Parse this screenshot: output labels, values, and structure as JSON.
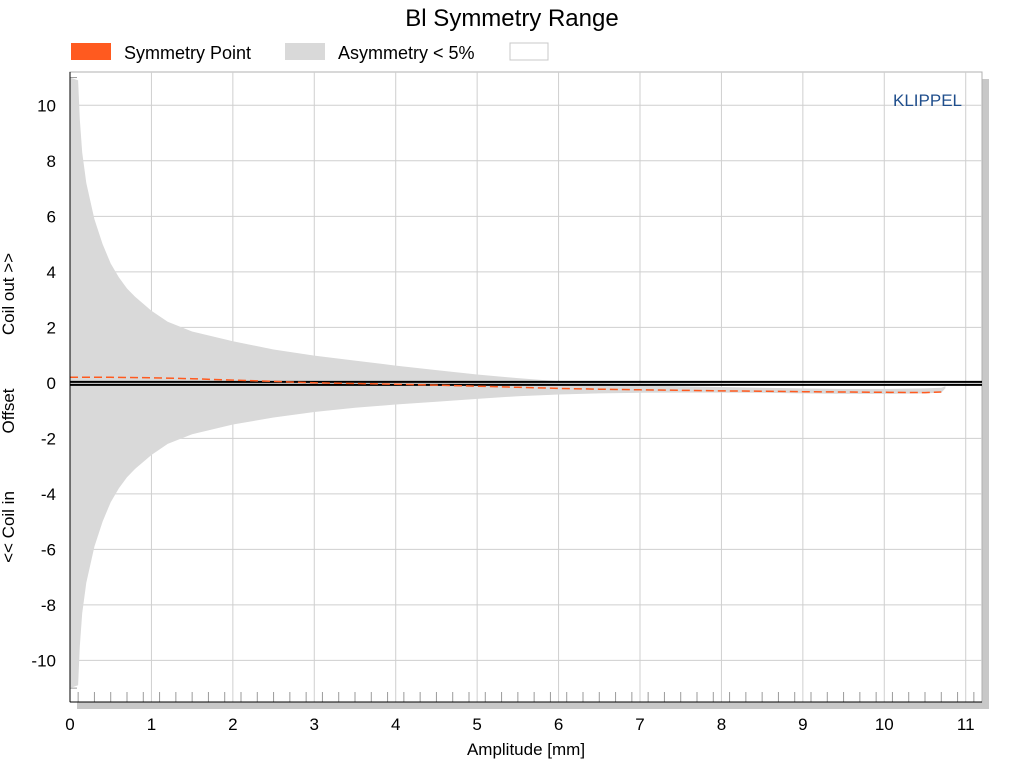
{
  "chart_data": {
    "type": "area",
    "title": "Bl Symmetry Range",
    "xlabel": "Amplitude [mm]",
    "ylabel_segments": [
      "<< Coil in",
      "Offset",
      "Coil out >>"
    ],
    "xlim": [
      0,
      11.2
    ],
    "ylim": [
      -11.5,
      11.2
    ],
    "xticks": [
      0,
      1,
      2,
      3,
      4,
      5,
      6,
      7,
      8,
      9,
      10,
      11
    ],
    "yticks": [
      -10,
      -8,
      -6,
      -4,
      -2,
      0,
      2,
      4,
      6,
      8,
      10
    ],
    "grid": true,
    "legend_position": "top",
    "watermark": "KLIPPEL",
    "legend": [
      {
        "label": "Symmetry Point",
        "color": "#ff5a1f"
      },
      {
        "label": "Asymmetry < 5%",
        "color": "#d9d9d9"
      },
      {
        "label": "",
        "color": "#ffffff"
      }
    ],
    "series": [
      {
        "name": "Asymmetry < 5%",
        "kind": "band",
        "x": [
          0.0,
          0.1,
          0.12,
          0.15,
          0.2,
          0.3,
          0.4,
          0.5,
          0.6,
          0.7,
          0.8,
          1.0,
          1.2,
          1.5,
          2.0,
          2.5,
          3.0,
          3.5,
          4.0,
          4.5,
          5.0,
          5.5,
          6.0,
          6.5,
          7.0,
          7.5,
          8.0,
          8.5,
          9.0,
          9.5,
          10.0,
          10.5,
          10.7,
          10.75
        ],
        "upper": [
          11.0,
          10.9,
          9.5,
          8.3,
          7.2,
          5.9,
          5.0,
          4.3,
          3.8,
          3.4,
          3.1,
          2.6,
          2.2,
          1.85,
          1.5,
          1.2,
          0.98,
          0.8,
          0.62,
          0.46,
          0.3,
          0.17,
          0.06,
          -0.02,
          -0.08,
          -0.12,
          -0.15,
          -0.18,
          -0.2,
          -0.22,
          -0.22,
          -0.2,
          -0.18,
          -0.12
        ],
        "lower": [
          -11.0,
          -10.9,
          -9.5,
          -8.3,
          -7.2,
          -5.9,
          -5.0,
          -4.3,
          -3.8,
          -3.4,
          -3.1,
          -2.6,
          -2.2,
          -1.85,
          -1.5,
          -1.25,
          -1.05,
          -0.9,
          -0.78,
          -0.68,
          -0.58,
          -0.48,
          -0.42,
          -0.38,
          -0.36,
          -0.35,
          -0.35,
          -0.36,
          -0.38,
          -0.4,
          -0.4,
          -0.38,
          -0.35,
          -0.2
        ],
        "color": "#d9d9d9"
      },
      {
        "name": "Symmetry Point",
        "kind": "line",
        "x": [
          0.0,
          0.5,
          1.0,
          1.5,
          2.0,
          2.5,
          3.0,
          4.0,
          4.5,
          5.0,
          5.5,
          6.0,
          6.5,
          7.0,
          7.5,
          8.0,
          8.5,
          9.0,
          9.5,
          10.0,
          10.5,
          10.7
        ],
        "y": [
          0.2,
          0.2,
          0.18,
          0.15,
          0.1,
          0.05,
          0.0,
          -0.05,
          -0.08,
          -0.12,
          -0.16,
          -0.2,
          -0.23,
          -0.25,
          -0.27,
          -0.29,
          -0.3,
          -0.32,
          -0.33,
          -0.34,
          -0.35,
          -0.33
        ],
        "color": "#ff5a1f"
      }
    ]
  }
}
